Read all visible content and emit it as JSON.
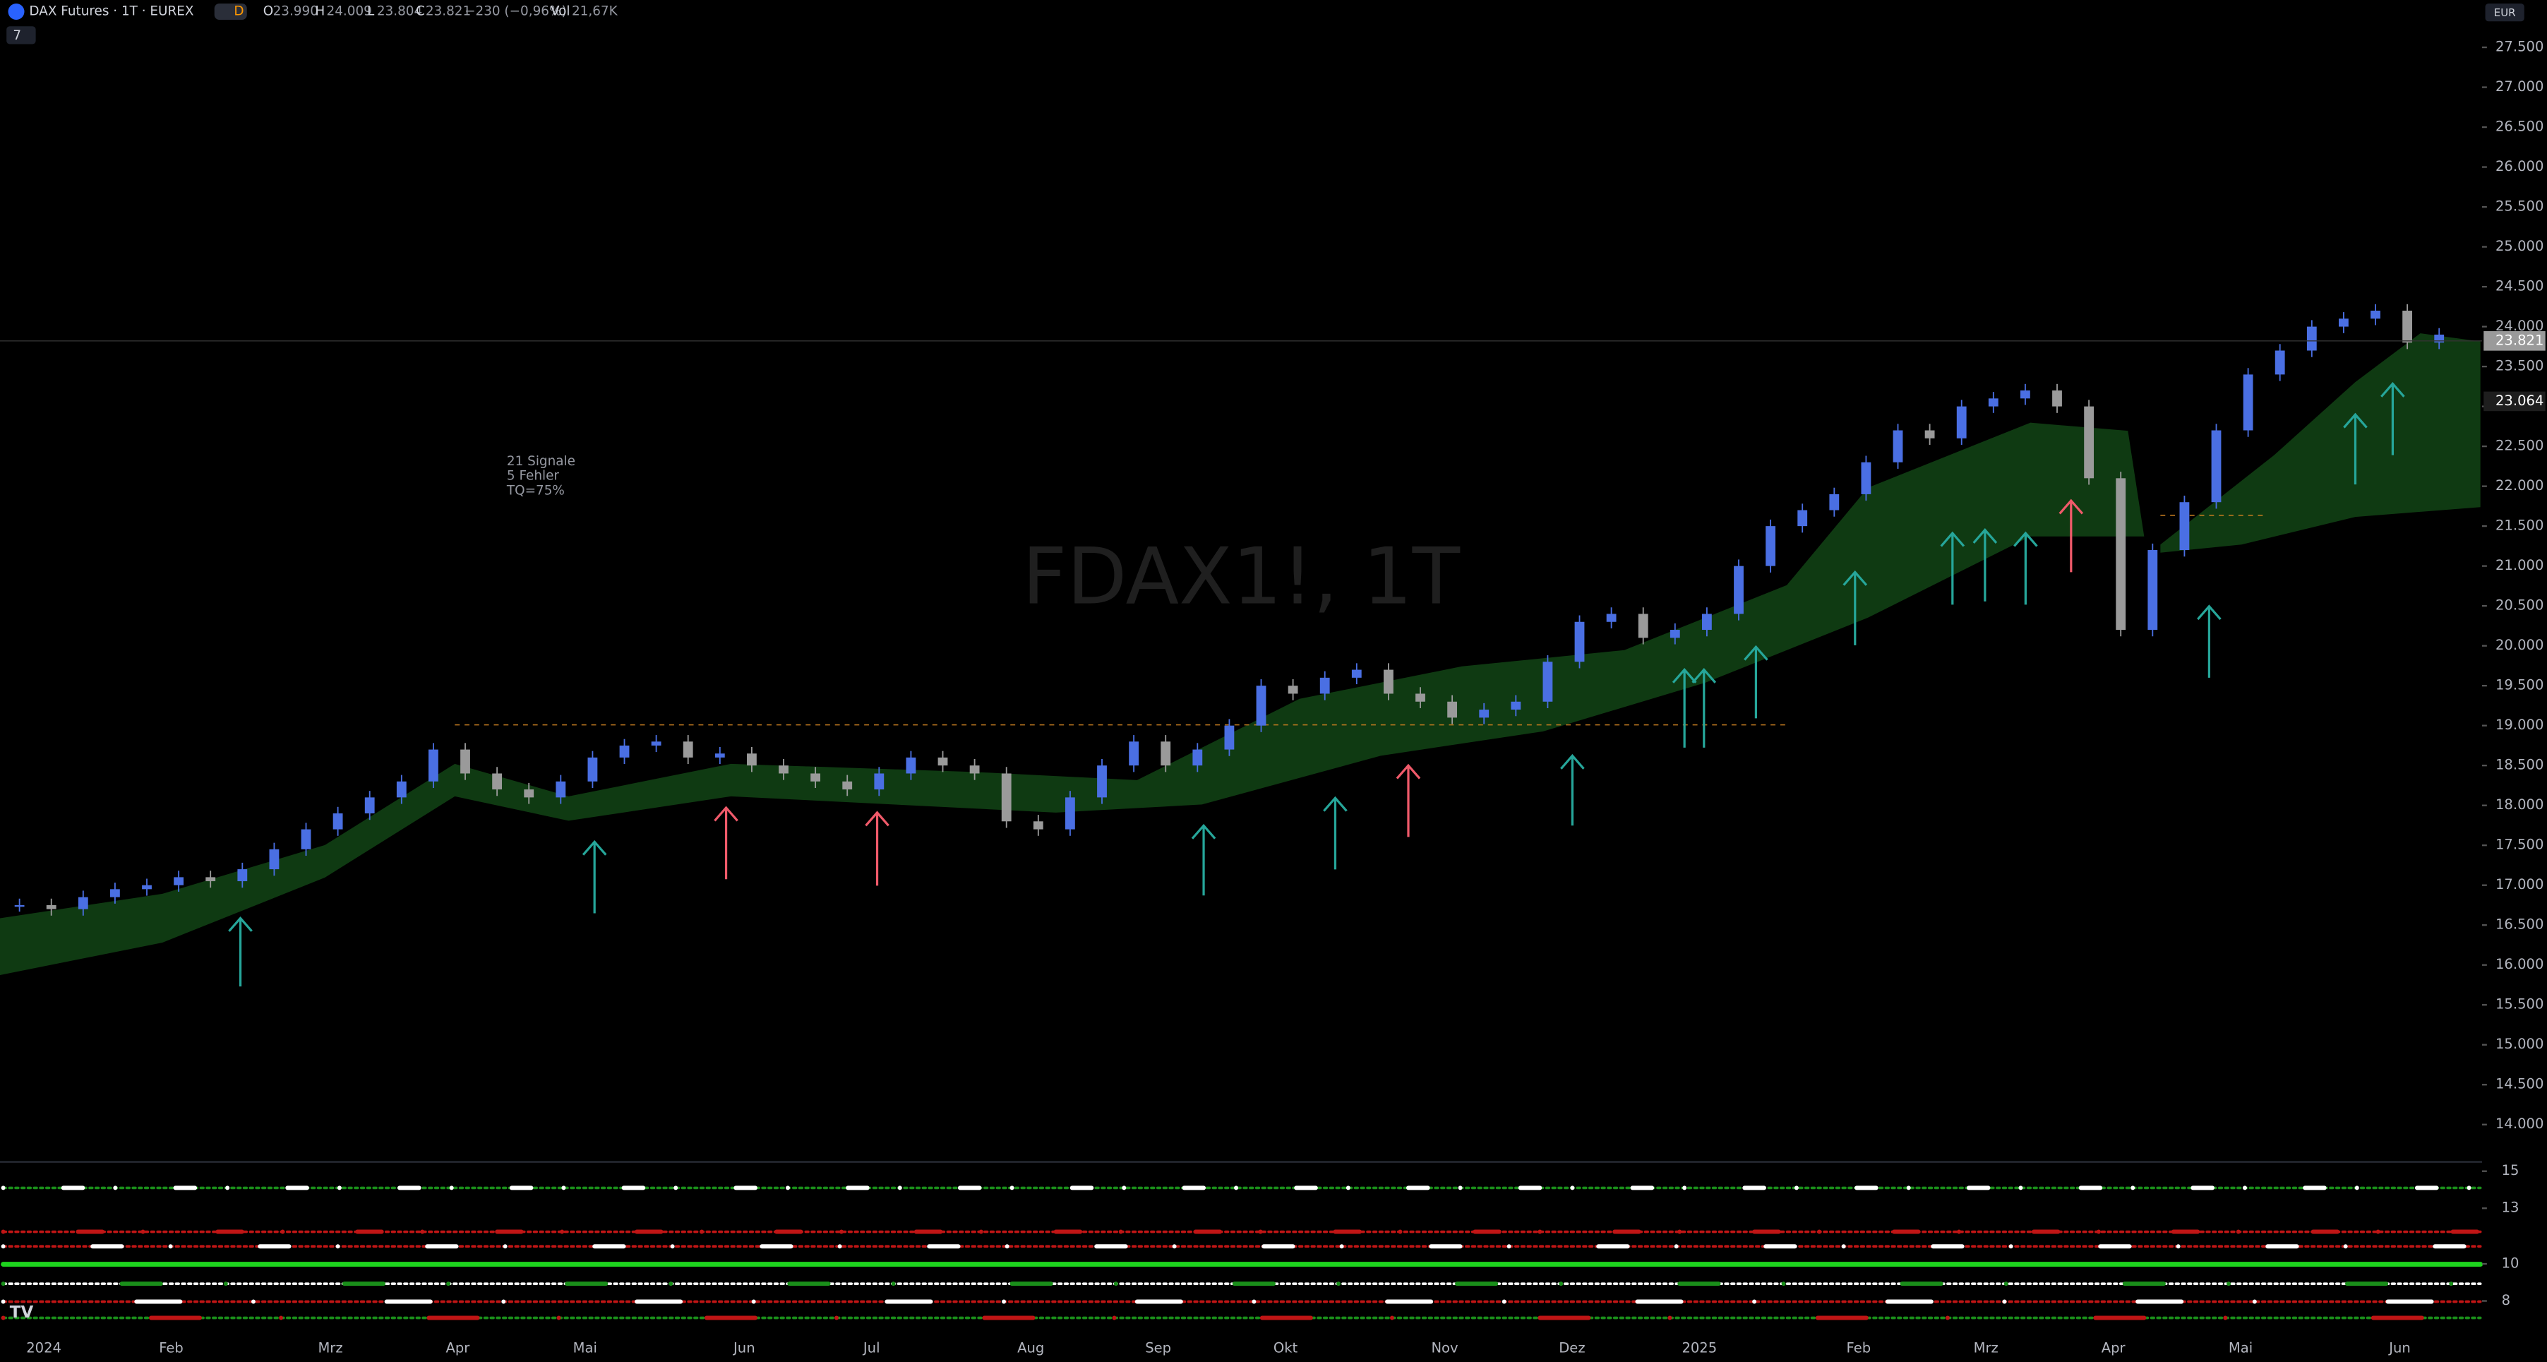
{
  "header": {
    "symbol": "DAX Futures · 1T · EUREX",
    "badge": "D",
    "o_label": "O",
    "open": "23.990",
    "h_label": "H",
    "high": "24.009",
    "l_label": "L",
    "low": "23.804",
    "c_label": "C",
    "close": "23.821",
    "change": "−230 (−0,96%)",
    "vol_label": "Vol",
    "volume": "21,67K",
    "indicators": "7",
    "currency": "EUR"
  },
  "annotation": {
    "lines": [
      "21 Signale",
      "5 Fehler",
      "TQ=75%"
    ]
  },
  "watermark": "FDAX1!, 1T",
  "chart_data": {
    "type": "candlestick",
    "categories": [
      "2024",
      null,
      null,
      null,
      "Feb",
      null,
      null,
      null,
      null,
      "Mrz",
      null,
      null,
      null,
      "Apr",
      null,
      null,
      null,
      "Mai",
      null,
      null,
      null,
      null,
      "Jun",
      null,
      null,
      null,
      "Jul",
      null,
      null,
      null,
      null,
      "Aug",
      null,
      null,
      null,
      "Sep",
      null,
      null,
      null,
      "Okt",
      null,
      null,
      null,
      null,
      "Nov",
      null,
      null,
      null,
      "Dez",
      null,
      null,
      null,
      "2025",
      null,
      null,
      null,
      null,
      "Feb",
      null,
      null,
      null,
      "Mrz",
      null,
      null,
      null,
      "Apr",
      null,
      null,
      null,
      "Mai",
      null,
      null,
      null,
      null,
      "Jun",
      null,
      null
    ],
    "series": [
      {
        "name": "FDAX1!",
        "color": "#4a6fe3",
        "down_color": "#9a9a9a",
        "values": [
          16750,
          16700,
          16850,
          16950,
          17000,
          17100,
          17050,
          17200,
          17450,
          17700,
          17900,
          18100,
          18300,
          18700,
          18400,
          18200,
          18100,
          18300,
          18600,
          18750,
          18800,
          18600,
          18650,
          18500,
          18400,
          18300,
          18200,
          18400,
          18600,
          18500,
          18400,
          17800,
          17700,
          18100,
          18500,
          18800,
          18500,
          18700,
          19000,
          19500,
          19400,
          19600,
          19700,
          19400,
          19300,
          19100,
          19200,
          19300,
          19800,
          20300,
          20400,
          20100,
          20200,
          20400,
          21000,
          21500,
          21700,
          21900,
          22300,
          22700,
          22600,
          23000,
          23100,
          23200,
          23000,
          22100,
          20200,
          21200,
          21800,
          22700,
          23400,
          23700,
          24000,
          24100,
          24200,
          23800,
          23900
        ]
      }
    ],
    "ylim": [
      13750,
      27750
    ],
    "yticks": [
      {
        "value": 27500,
        "label": "27.500"
      },
      {
        "value": 27000,
        "label": "27.000"
      },
      {
        "value": 26500,
        "label": "26.500"
      },
      {
        "value": 26000,
        "label": "26.000"
      },
      {
        "value": 25500,
        "label": "25.500"
      },
      {
        "value": 25000,
        "label": "25.000"
      },
      {
        "value": 24500,
        "label": "24.500"
      },
      {
        "value": 24000,
        "label": "24.000"
      },
      {
        "value": 23500,
        "label": "23.500"
      },
      {
        "value": 23000,
        "label": "23.000"
      },
      {
        "value": 22500,
        "label": "22.500"
      },
      {
        "value": 22000,
        "label": "22.000"
      },
      {
        "value": 21500,
        "label": "21.500"
      },
      {
        "value": 21000,
        "label": "21.000"
      },
      {
        "value": 20500,
        "label": "20.500"
      },
      {
        "value": 20000,
        "label": "20.000"
      },
      {
        "value": 19500,
        "label": "19.500"
      },
      {
        "value": 19000,
        "label": "19.000"
      },
      {
        "value": 18500,
        "label": "18.500"
      },
      {
        "value": 18000,
        "label": "18.000"
      },
      {
        "value": 17500,
        "label": "17.500"
      },
      {
        "value": 17000,
        "label": "17.000"
      },
      {
        "value": 16500,
        "label": "16.500"
      },
      {
        "value": 16000,
        "label": "16.000"
      },
      {
        "value": 15500,
        "label": "15.500"
      },
      {
        "value": 15000,
        "label": "15.000"
      },
      {
        "value": 14500,
        "label": "14.500"
      },
      {
        "value": 14000,
        "label": "14.000"
      }
    ],
    "price_tags": [
      {
        "value": 23821,
        "label": "23.821",
        "color": "#9a9a9a"
      },
      {
        "value": 23064,
        "label": "23.064",
        "color": "#1e1e1e"
      }
    ],
    "indicator": {
      "ylim": [
        7,
        15.5
      ],
      "yticks": [
        15,
        13,
        10,
        8
      ]
    }
  }
}
